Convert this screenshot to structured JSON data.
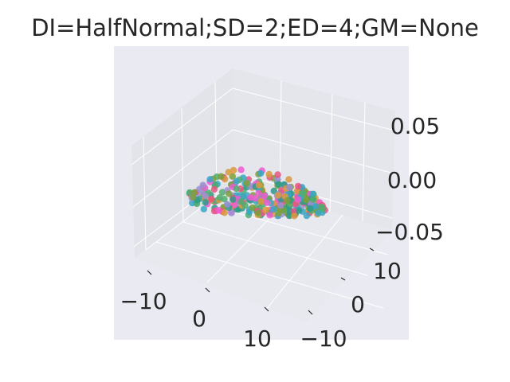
{
  "chart_data": {
    "type": "scatter",
    "title": "DI=HalfNormal;SD=2;ED=4;GM=None",
    "xlabel": "",
    "ylabel": "",
    "zlabel": "",
    "xlim": [
      -15,
      17
    ],
    "ylim": [
      -15,
      17
    ],
    "zlim": [
      -0.06,
      0.06
    ],
    "x_ticks": [
      "−10",
      "0",
      "10"
    ],
    "y_ticks": [
      "−10",
      "0",
      "10"
    ],
    "z_ticks": [
      "−0.05",
      "0.00",
      "0.05"
    ],
    "grid": true,
    "n_points": 320,
    "z_value": 0.0,
    "point_colors": [
      "#e8557f",
      "#3aa7c4",
      "#4fae6e",
      "#9e8fd3",
      "#d99a3e",
      "#f05bd2",
      "#7aa03a",
      "#2f9a8a"
    ],
    "pane_color": "#eaeaf2",
    "background": "#ffffff"
  }
}
